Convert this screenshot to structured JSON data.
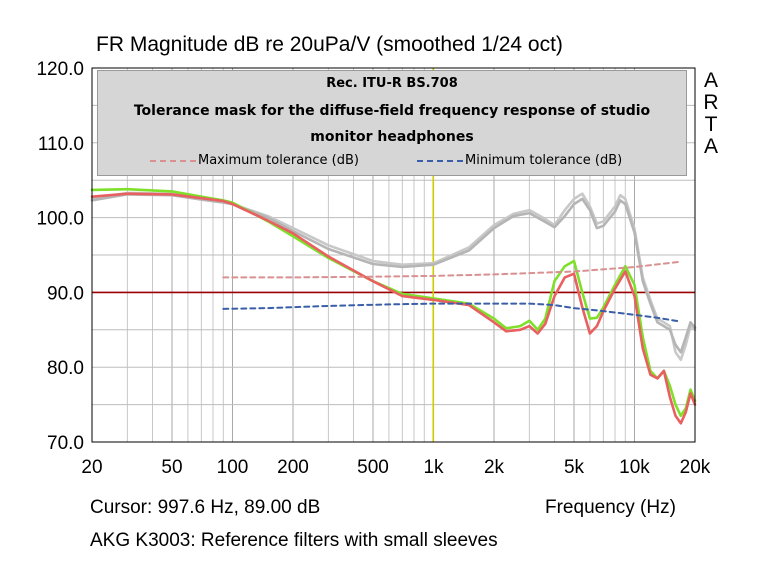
{
  "chart_data": {
    "type": "line",
    "title": "FR Magnitude dB re 20uPa/V (smoothed 1/24 oct)",
    "brand_letters": [
      "A",
      "R",
      "T",
      "A"
    ],
    "xlabel": "Frequency (Hz)",
    "x_scale": "log",
    "xlim": [
      20,
      20000
    ],
    "ylim": [
      70,
      120
    ],
    "x_ticks": [
      {
        "value": 20,
        "label": "20"
      },
      {
        "value": 50,
        "label": "50"
      },
      {
        "value": 100,
        "label": "100"
      },
      {
        "value": 200,
        "label": "200"
      },
      {
        "value": 500,
        "label": "500"
      },
      {
        "value": 1000,
        "label": "1k"
      },
      {
        "value": 2000,
        "label": "2k"
      },
      {
        "value": 5000,
        "label": "5k"
      },
      {
        "value": 10000,
        "label": "10k"
      },
      {
        "value": 20000,
        "label": "20k"
      }
    ],
    "y_ticks": [
      {
        "value": 70,
        "label": "70.0"
      },
      {
        "value": 80,
        "label": "80.0"
      },
      {
        "value": 90,
        "label": "90.0"
      },
      {
        "value": 100,
        "label": "100.0"
      },
      {
        "value": 110,
        "label": "110.0"
      },
      {
        "value": 120,
        "label": "120.0"
      }
    ],
    "grid": true,
    "legend": {
      "placement": "top",
      "heading": "Rec. ITU-R BS.708",
      "description": "Tolerance mask for the diffuse-field frequency response of studio monitor headphones",
      "entries": [
        "Maximum tolerance (dB)",
        "Minimum tolerance (dB)"
      ]
    },
    "reference_line": {
      "y": 90,
      "color": "#990000"
    },
    "cursor": {
      "x": 997.6,
      "y": 89.0,
      "color": "#cccc00",
      "readout": "Cursor: 997.6 Hz, 89.00 dB"
    },
    "footnote": "AKG K3003: Reference filters with small sleeves",
    "series": [
      {
        "name": "Maximum tolerance (dB)",
        "color": "#d99090",
        "dashed": true,
        "x": [
          90,
          200,
          500,
          1000,
          2000,
          5000,
          10000,
          17000
        ],
        "y": [
          92,
          92,
          92.1,
          92.2,
          92.4,
          92.8,
          93.4,
          94.1
        ]
      },
      {
        "name": "Minimum tolerance (dB)",
        "color": "#3a5fa8",
        "dashed": true,
        "x": [
          90,
          150,
          300,
          600,
          1000,
          2000,
          3000,
          4000,
          5000,
          7000,
          10000,
          13000,
          17000
        ],
        "y": [
          87.8,
          87.9,
          88.2,
          88.4,
          88.5,
          88.5,
          88.5,
          88.3,
          87.9,
          87.5,
          87.0,
          86.6,
          86.1
        ]
      },
      {
        "color": "#c8c8c8",
        "dashed": false,
        "x": [
          20,
          30,
          50,
          70,
          90,
          100,
          150,
          200,
          300,
          500,
          700,
          1000,
          1500,
          2000,
          2500,
          3000,
          3500,
          4000,
          4500,
          5000,
          5500,
          6000,
          6500,
          7000,
          8000,
          8500,
          9000,
          10000,
          11000,
          12000,
          13000,
          14000,
          15000,
          16000,
          17000,
          18000,
          19000,
          20000
        ],
        "y": [
          102.5,
          103.3,
          103.2,
          102.5,
          102.1,
          101.8,
          100.2,
          98.6,
          96.3,
          94.2,
          93.7,
          93.9,
          96.0,
          99.0,
          100.5,
          101.0,
          100.0,
          99.0,
          101.0,
          102.5,
          103.2,
          101.5,
          99.2,
          99.5,
          101.5,
          103.0,
          102.5,
          98.5,
          92.0,
          89.0,
          86.5,
          86.0,
          85.5,
          82.0,
          81.0,
          83.0,
          85.5,
          85.0
        ]
      },
      {
        "color": "#b5b5b5",
        "dashed": false,
        "x": [
          20,
          30,
          50,
          70,
          90,
          100,
          150,
          200,
          300,
          500,
          700,
          1000,
          1500,
          2000,
          2500,
          3000,
          3500,
          4000,
          4500,
          5000,
          5500,
          6000,
          6500,
          7000,
          8000,
          8500,
          9000,
          10000,
          11000,
          12000,
          13000,
          14000,
          15000,
          16000,
          17000,
          18000,
          19000,
          20000
        ],
        "y": [
          102.3,
          103.1,
          103.0,
          102.4,
          102.0,
          101.8,
          100.0,
          98.2,
          95.8,
          93.8,
          93.4,
          93.7,
          95.6,
          98.6,
          100.2,
          100.6,
          99.6,
          98.7,
          100.2,
          101.8,
          102.5,
          101.0,
          98.6,
          98.9,
          100.8,
          102.3,
          101.8,
          98.0,
          91.5,
          88.5,
          86.0,
          85.5,
          85.0,
          83.0,
          82.0,
          84.0,
          86.0,
          85.3
        ]
      },
      {
        "color": "#7ee029",
        "dashed": false,
        "x": [
          20,
          30,
          50,
          70,
          90,
          100,
          150,
          200,
          300,
          500,
          700,
          1000,
          1500,
          2000,
          2300,
          2700,
          3000,
          3300,
          3600,
          4000,
          4500,
          5000,
          5500,
          6000,
          6500,
          7000,
          8000,
          9000,
          10000,
          11000,
          12000,
          13000,
          14000,
          15000,
          16000,
          17000,
          18000,
          19000,
          20000
        ],
        "y": [
          103.7,
          103.8,
          103.5,
          102.8,
          102.3,
          102.0,
          99.5,
          97.5,
          94.6,
          91.5,
          89.8,
          89.2,
          88.5,
          86.5,
          85.2,
          85.5,
          86.2,
          85.0,
          86.5,
          91.5,
          93.5,
          94.2,
          90.0,
          86.5,
          86.6,
          88.0,
          91.0,
          93.5,
          91.0,
          84.0,
          79.5,
          78.5,
          79.5,
          77.5,
          75.0,
          73.5,
          74.5,
          77.0,
          75.5
        ]
      },
      {
        "color": "#e86060",
        "dashed": false,
        "x": [
          20,
          30,
          50,
          70,
          90,
          100,
          150,
          200,
          300,
          500,
          700,
          1000,
          1500,
          2000,
          2300,
          2700,
          3000,
          3300,
          3600,
          4000,
          4500,
          5000,
          5500,
          6000,
          6500,
          7000,
          8000,
          9000,
          10000,
          11000,
          12000,
          13000,
          14000,
          15000,
          16000,
          17000,
          18000,
          19000,
          20000
        ],
        "y": [
          102.8,
          103.2,
          103.1,
          102.6,
          102.2,
          101.8,
          99.6,
          97.9,
          94.8,
          91.5,
          89.5,
          89.0,
          88.3,
          86.0,
          84.8,
          85.0,
          85.5,
          84.5,
          85.8,
          89.5,
          92.0,
          92.5,
          88.0,
          84.5,
          85.5,
          87.5,
          90.5,
          92.8,
          89.5,
          82.5,
          79.0,
          78.5,
          79.5,
          76.0,
          73.5,
          72.5,
          74.0,
          76.5,
          75.0
        ]
      }
    ]
  }
}
